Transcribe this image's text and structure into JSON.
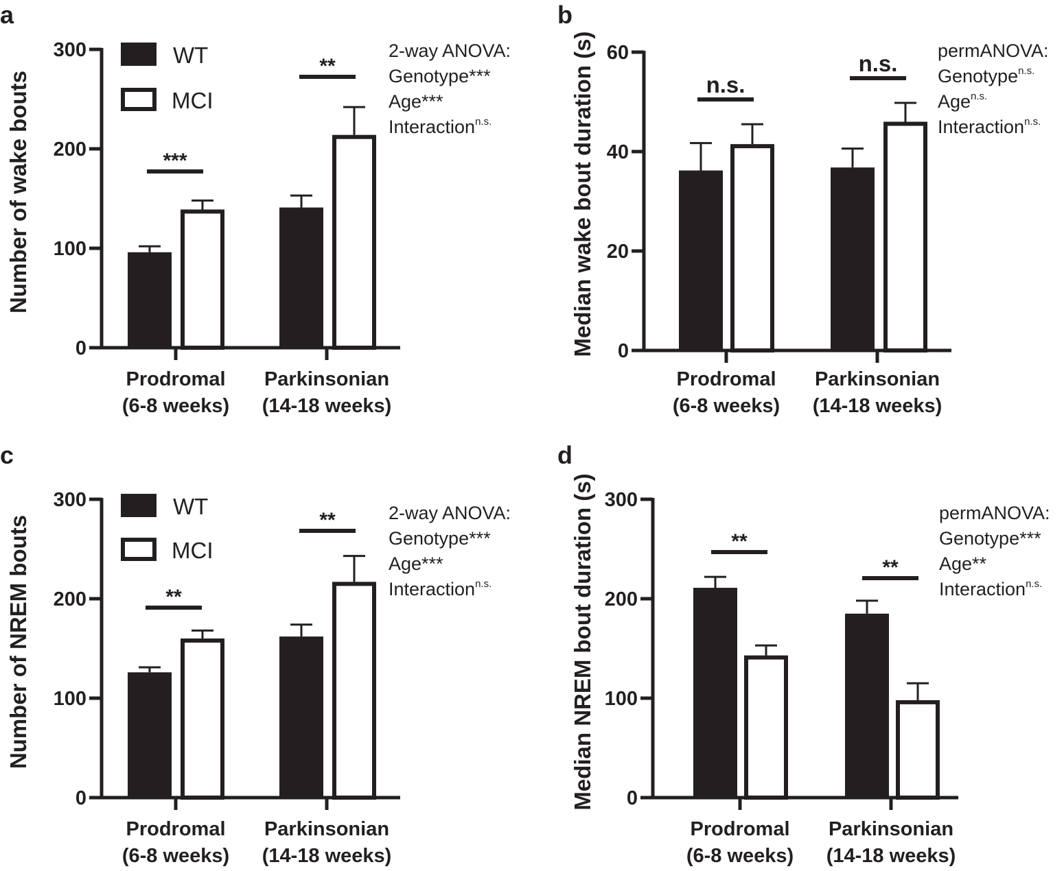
{
  "colors": {
    "ink": "#231f20",
    "wt_fill": "#231f20",
    "mci_fill": "#ffffff"
  },
  "legend": {
    "wt": "WT",
    "mci": "MCI"
  },
  "categories": [
    {
      "line1": "Prodromal",
      "line2": "(6-8 weeks)"
    },
    {
      "line1": "Parkinsonian",
      "line2": "(14-18 weeks)"
    }
  ],
  "chart_data": [
    {
      "panel": "a",
      "type": "bar",
      "ylabel": "Number of wake bouts",
      "ylim": [
        0,
        300
      ],
      "yticks": [
        0,
        100,
        200,
        300
      ],
      "categories": [
        "Prodromal (6-8 weeks)",
        "Parkinsonian (14-18 weeks)"
      ],
      "series": [
        {
          "name": "WT",
          "values": [
            96,
            141
          ],
          "errors": [
            6,
            12
          ]
        },
        {
          "name": "MCI",
          "values": [
            139,
            214
          ],
          "errors": [
            9,
            28
          ]
        }
      ],
      "significance": [
        "***",
        "**"
      ],
      "legend_shown": true,
      "stats": [
        {
          "text": "2-way ANOVA:",
          "sup": ""
        },
        {
          "text": "Genotype***",
          "sup": ""
        },
        {
          "text": "Age***",
          "sup": ""
        },
        {
          "text": "Interaction",
          "sup": "n.s."
        }
      ]
    },
    {
      "panel": "b",
      "type": "bar",
      "ylabel": "Median wake bout duration (s)",
      "ylim": [
        0,
        60
      ],
      "yticks": [
        0,
        20,
        40,
        60
      ],
      "categories": [
        "Prodromal (6-8 weeks)",
        "Parkinsonian (14-18 weeks)"
      ],
      "series": [
        {
          "name": "WT",
          "values": [
            36.2,
            36.8
          ],
          "errors": [
            5.5,
            3.8
          ]
        },
        {
          "name": "MCI",
          "values": [
            41.5,
            46
          ],
          "errors": [
            4,
            3.8
          ]
        }
      ],
      "significance": [
        "n.s.",
        "n.s."
      ],
      "legend_shown": false,
      "stats": [
        {
          "text": "permANOVA:",
          "sup": ""
        },
        {
          "text": "Genotype",
          "sup": "n.s."
        },
        {
          "text": "Age",
          "sup": "n.s."
        },
        {
          "text": "Interaction",
          "sup": "n.s."
        }
      ]
    },
    {
      "panel": "c",
      "type": "bar",
      "ylabel": "Number of NREM bouts",
      "ylim": [
        0,
        300
      ],
      "yticks": [
        0,
        100,
        200,
        300
      ],
      "categories": [
        "Prodromal (6-8 weeks)",
        "Parkinsonian (14-18 weeks)"
      ],
      "series": [
        {
          "name": "WT",
          "values": [
            126,
            162
          ],
          "errors": [
            5,
            12
          ]
        },
        {
          "name": "MCI",
          "values": [
            160,
            217
          ],
          "errors": [
            8,
            26
          ]
        }
      ],
      "significance": [
        "**",
        "**"
      ],
      "legend_shown": true,
      "stats": [
        {
          "text": "2-way ANOVA:",
          "sup": ""
        },
        {
          "text": "Genotype***",
          "sup": ""
        },
        {
          "text": "Age***",
          "sup": ""
        },
        {
          "text": "Interaction",
          "sup": "n.s."
        }
      ]
    },
    {
      "panel": "d",
      "type": "bar",
      "ylabel": "Median NREM bout duration (s)",
      "ylim": [
        0,
        300
      ],
      "yticks": [
        0,
        100,
        200,
        300
      ],
      "categories": [
        "Prodromal (6-8 weeks)",
        "Parkinsonian (14-18 weeks)"
      ],
      "series": [
        {
          "name": "WT",
          "values": [
            211,
            185
          ],
          "errors": [
            11,
            13
          ]
        },
        {
          "name": "MCI",
          "values": [
            143,
            98
          ],
          "errors": [
            10,
            17
          ]
        }
      ],
      "significance": [
        "**",
        "**"
      ],
      "legend_shown": false,
      "stats": [
        {
          "text": "permANOVA:",
          "sup": ""
        },
        {
          "text": "Genotype***",
          "sup": ""
        },
        {
          "text": "Age**",
          "sup": ""
        },
        {
          "text": "Interaction",
          "sup": "n.s."
        }
      ]
    }
  ]
}
